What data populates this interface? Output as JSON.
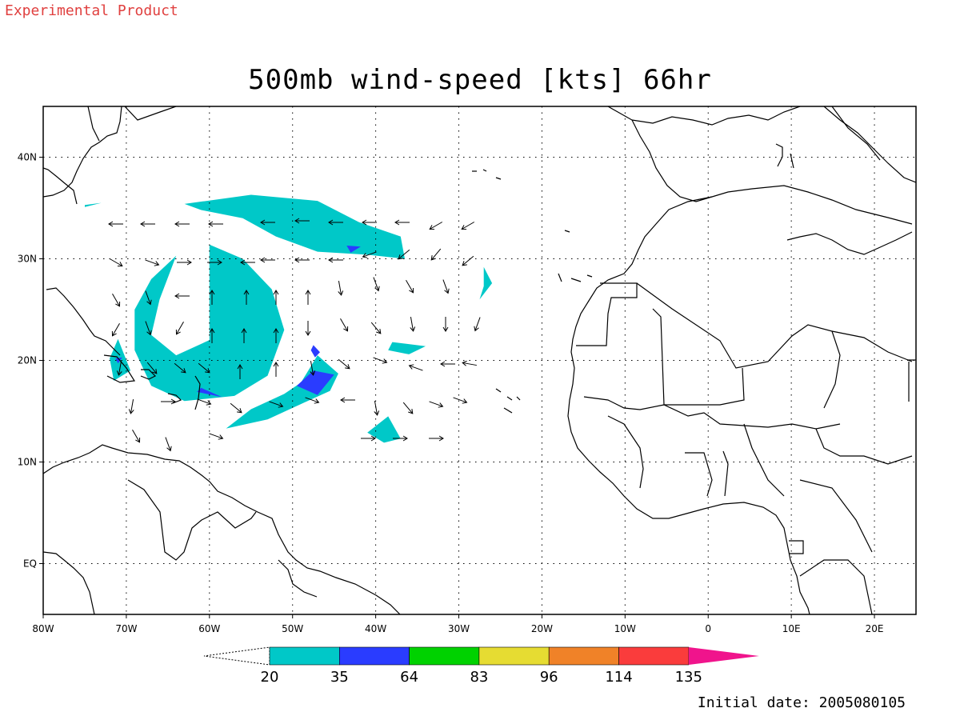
{
  "header_label": "Experimental Product",
  "title": "500mb wind-speed [kts] 66hr",
  "footer": "Initial date: 2005080105",
  "map": {
    "lon_range": [
      -80,
      25
    ],
    "lat_range": [
      -5,
      45
    ],
    "lon_ticks": [
      {
        "value": -80,
        "label": "80W"
      },
      {
        "value": -70,
        "label": "70W"
      },
      {
        "value": -60,
        "label": "60W"
      },
      {
        "value": -50,
        "label": "50W"
      },
      {
        "value": -40,
        "label": "40W"
      },
      {
        "value": -30,
        "label": "30W"
      },
      {
        "value": -20,
        "label": "20W"
      },
      {
        "value": -10,
        "label": "10W"
      },
      {
        "value": 0,
        "label": "0"
      },
      {
        "value": 10,
        "label": "10E"
      },
      {
        "value": 20,
        "label": "20E"
      }
    ],
    "lat_ticks": [
      {
        "value": 0,
        "label": "EQ"
      },
      {
        "value": 10,
        "label": "10N"
      },
      {
        "value": 20,
        "label": "20N"
      },
      {
        "value": 30,
        "label": "30N"
      },
      {
        "value": 40,
        "label": "40N"
      }
    ],
    "grid": true
  },
  "colorbar": {
    "levels": [
      "20",
      "35",
      "64",
      "83",
      "96",
      "114",
      "135"
    ],
    "colors": [
      "#00c8c8",
      "#2a3cff",
      "#00d200",
      "#e6dc32",
      "#f08228",
      "#fa3c3c",
      "#f0148c"
    ]
  },
  "chart_data": {
    "type": "heatmap",
    "title": "500mb wind-speed [kts] 66hr",
    "variable": "500mb wind-speed",
    "units": "kts",
    "forecast_hour": 66,
    "initial_date": "2005080105",
    "xlim": [
      -80,
      25
    ],
    "ylim": [
      -5,
      45
    ],
    "contour_levels": [
      20,
      35,
      64,
      83,
      96,
      114,
      135
    ],
    "regions": [
      {
        "level": 20,
        "color": "#00c8c8",
        "lonlat": [
          [
            -63,
            35.4
          ],
          [
            -55,
            36.3
          ],
          [
            -47,
            35.7
          ],
          [
            -42,
            33.6
          ],
          [
            -37,
            32.2
          ],
          [
            -36.5,
            30
          ],
          [
            -41,
            30.4
          ],
          [
            -47,
            30.7
          ],
          [
            -52,
            32.2
          ],
          [
            -56,
            34
          ],
          [
            -61,
            34.8
          ]
        ]
      },
      {
        "level": 20,
        "color": "#00c8c8",
        "lonlat": [
          [
            -60,
            31.4
          ],
          [
            -56,
            30
          ],
          [
            -52.5,
            27
          ],
          [
            -51,
            23
          ],
          [
            -53,
            18.5
          ],
          [
            -57,
            16.5
          ],
          [
            -63,
            16
          ],
          [
            -67,
            17.5
          ],
          [
            -69,
            21
          ],
          [
            -69,
            25
          ],
          [
            -67,
            28
          ],
          [
            -64,
            30.3
          ],
          [
            -66,
            26
          ],
          [
            -67,
            22.5
          ],
          [
            -64,
            20.5
          ],
          [
            -60,
            22
          ],
          [
            -60,
            26
          ]
        ]
      },
      {
        "level": 20,
        "color": "#00c8c8",
        "lonlat": [
          [
            -47,
            20.5
          ],
          [
            -44.5,
            18.7
          ],
          [
            -45.5,
            17
          ],
          [
            -49,
            15.7
          ],
          [
            -53,
            14.2
          ],
          [
            -58,
            13.3
          ],
          [
            -55,
            15.2
          ],
          [
            -51,
            16.7
          ],
          [
            -49,
            17.8
          ]
        ]
      },
      {
        "level": 20,
        "color": "#00c8c8",
        "lonlat": [
          [
            -41,
            12.9
          ],
          [
            -38.5,
            14.5
          ],
          [
            -37,
            12.3
          ],
          [
            -39,
            11.9
          ]
        ]
      },
      {
        "level": 20,
        "color": "#00c8c8",
        "lonlat": [
          [
            -38,
            21.8
          ],
          [
            -34,
            21.4
          ],
          [
            -36,
            20.6
          ],
          [
            -38.5,
            21
          ]
        ]
      },
      {
        "level": 20,
        "color": "#00c8c8",
        "lonlat": [
          [
            -27,
            29.2
          ],
          [
            -26,
            27.6
          ],
          [
            -27.5,
            26
          ],
          [
            -27,
            27.3
          ]
        ]
      },
      {
        "level": 20,
        "color": "#00c8c8",
        "lonlat": [
          [
            -72,
            20.2
          ],
          [
            -71,
            22.1
          ],
          [
            -69.5,
            19
          ],
          [
            -71.5,
            18
          ]
        ]
      },
      {
        "level": 20,
        "color": "#00c8c8",
        "lonlat": [
          [
            -75,
            35.3
          ],
          [
            -73,
            35.5
          ],
          [
            -75,
            35.1
          ]
        ]
      },
      {
        "level": 35,
        "color": "#2a3cff",
        "lonlat": [
          [
            -47,
            16.6
          ],
          [
            -45,
            18.6
          ],
          [
            -47.5,
            19
          ],
          [
            -49.5,
            17.5
          ]
        ]
      },
      {
        "level": 35,
        "color": "#2a3cff",
        "lonlat": [
          [
            -61.5,
            16.9
          ],
          [
            -58.5,
            16.4
          ],
          [
            -61,
            17.3
          ]
        ]
      },
      {
        "level": 35,
        "color": "#2a3cff",
        "lonlat": [
          [
            -47.5,
            21.5
          ],
          [
            -46.7,
            20.8
          ],
          [
            -47.3,
            20.3
          ],
          [
            -47.8,
            21
          ]
        ]
      },
      {
        "level": 35,
        "color": "#2a3cff",
        "lonlat": [
          [
            -43.5,
            31.3
          ],
          [
            -41.8,
            31.2
          ],
          [
            -43,
            30.6
          ]
        ]
      },
      {
        "level": 35,
        "color": "#2a3cff",
        "lonlat": [
          [
            -71.3,
            20.2
          ],
          [
            -70.5,
            20.3
          ],
          [
            -71,
            19.7
          ]
        ]
      }
    ]
  }
}
